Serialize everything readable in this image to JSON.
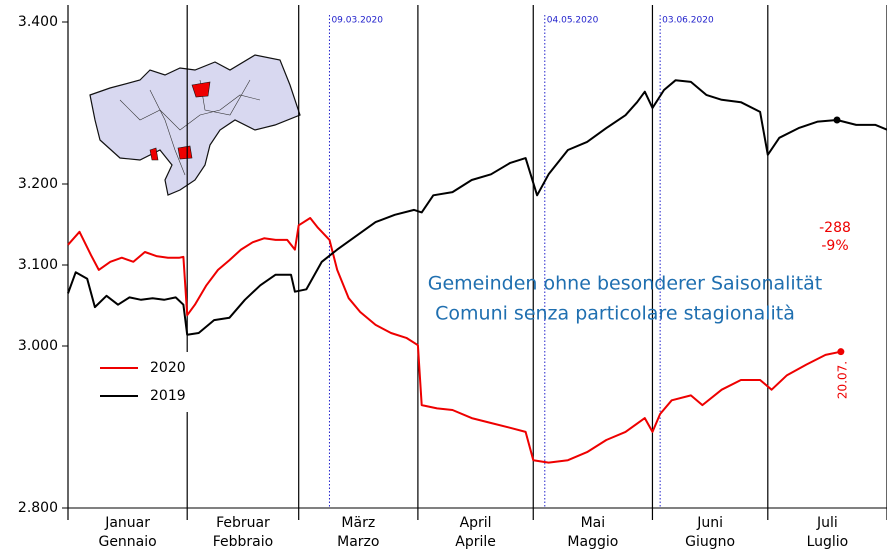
{
  "chart_data": {
    "type": "line",
    "subtitle": [
      "Gemeinden ohne besonderer Saisonalität",
      "Comuni senza particolare stagionalità"
    ],
    "xlim": [
      0,
      213
    ],
    "month_bounds": [
      0,
      31,
      60,
      91,
      121,
      152,
      182,
      213
    ],
    "months": [
      [
        "Januar",
        "Gennaio"
      ],
      [
        "Februar",
        "Febbraio"
      ],
      [
        "März",
        "Marzo"
      ],
      [
        "April",
        "Aprile"
      ],
      [
        "Mai",
        "Maggio"
      ],
      [
        "Juni",
        "Giugno"
      ],
      [
        "Juli",
        "Luglio"
      ]
    ],
    "ylim": [
      2800,
      3421
    ],
    "yticks": [
      {
        "value": 2800,
        "label": "2.800"
      },
      {
        "value": 3000,
        "label": "3.000"
      },
      {
        "value": 3100,
        "label": "3.100"
      },
      {
        "value": 3200,
        "label": "3.200"
      },
      {
        "value": 3400,
        "label": "3.400"
      }
    ],
    "events": [
      {
        "x": 68,
        "label": "09.03.2020"
      },
      {
        "x": 124,
        "label": "04.05.2020"
      },
      {
        "x": 154,
        "label": "03.06.2020"
      }
    ],
    "event_color": "#2222cc",
    "annotations": [
      "-288",
      "-9%"
    ],
    "end_label": "20.07.",
    "series": [
      {
        "name": "2020",
        "color": "#ee0000",
        "x": [
          0,
          3,
          6,
          8,
          11,
          14,
          17,
          20,
          23,
          26,
          29,
          30,
          31,
          33,
          36,
          39,
          42,
          45,
          48,
          51,
          54,
          57,
          59,
          60,
          63,
          65,
          68,
          70,
          73,
          76,
          80,
          84,
          88,
          91,
          92,
          96,
          100,
          105,
          110,
          115,
          119,
          121,
          125,
          130,
          135,
          140,
          145,
          150,
          152,
          154,
          157,
          162,
          165,
          170,
          175,
          180,
          183,
          187,
          192,
          197,
          201
        ],
        "values": [
          3125,
          3141,
          3112,
          3094,
          3104,
          3109,
          3104,
          3116,
          3111,
          3109,
          3109,
          3110,
          3038,
          3051,
          3075,
          3094,
          3106,
          3119,
          3128,
          3133,
          3131,
          3131,
          3119,
          3149,
          3158,
          3146,
          3131,
          3094,
          3059,
          3042,
          3026,
          3016,
          3010,
          3001,
          2927,
          2923,
          2921,
          2911,
          2905,
          2899,
          2894,
          2859,
          2856,
          2859,
          2869,
          2884,
          2894,
          2911,
          2894,
          2916,
          2933,
          2939,
          2927,
          2946,
          2958,
          2958,
          2946,
          2964,
          2977,
          2989,
          2993
        ]
      },
      {
        "name": "2019",
        "color": "#000000",
        "x": [
          0,
          2,
          5,
          7,
          10,
          13,
          16,
          19,
          22,
          25,
          28,
          30,
          31,
          34,
          38,
          42,
          46,
          50,
          54,
          58,
          59,
          62,
          66,
          70,
          75,
          80,
          85,
          90,
          92,
          95,
          100,
          105,
          110,
          115,
          119,
          122,
          125,
          130,
          135,
          140,
          145,
          148,
          150,
          152,
          155,
          158,
          162,
          166,
          170,
          175,
          180,
          182,
          185,
          190,
          195,
          200,
          205,
          210,
          213
        ],
        "values": [
          3065,
          3091,
          3083,
          3048,
          3062,
          3051,
          3060,
          3057,
          3059,
          3057,
          3060,
          3051,
          3014,
          3016,
          3032,
          3035,
          3057,
          3075,
          3088,
          3088,
          3067,
          3070,
          3104,
          3119,
          3136,
          3153,
          3162,
          3168,
          3165,
          3186,
          3190,
          3205,
          3212,
          3226,
          3232,
          3186,
          3212,
          3242,
          3252,
          3269,
          3285,
          3301,
          3314,
          3294,
          3316,
          3328,
          3326,
          3310,
          3304,
          3301,
          3289,
          3236,
          3257,
          3269,
          3277,
          3279,
          3273,
          3273,
          3267
        ]
      }
    ]
  }
}
